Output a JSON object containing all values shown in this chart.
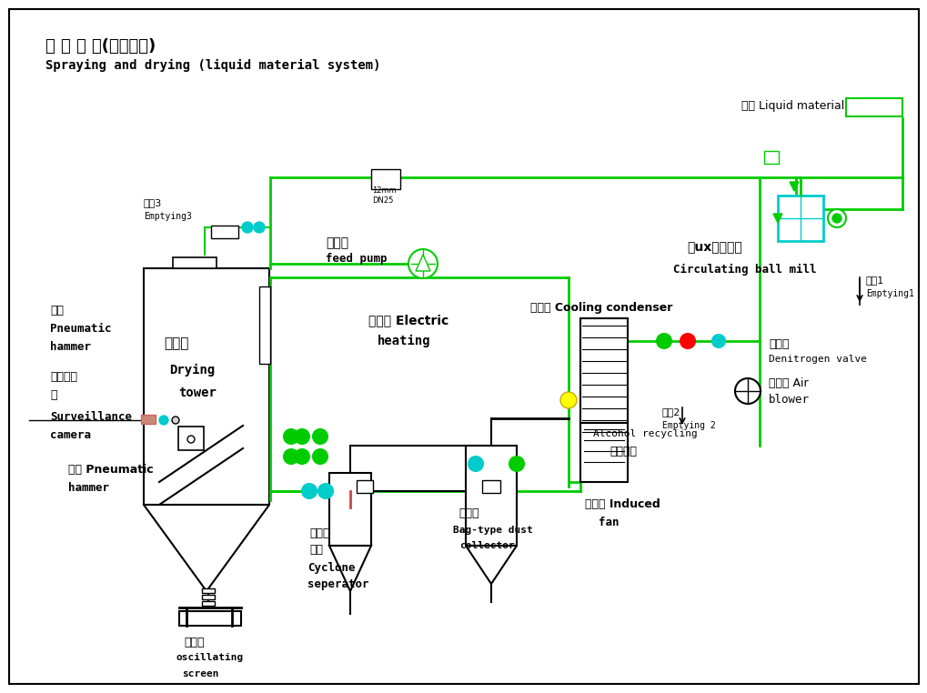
{
  "bg_color": "#ffffff",
  "border_color": "#000000",
  "line_color": "#00cc00",
  "cyan_color": "#00cccc",
  "title_cn": "喷 雾 干 燥(料液系统)",
  "title_en": "Spraying and drying (liquid material system)",
  "liquid_material": "料液 Liquid material",
  "ball_mill_cn": "循ux环球磨机",
  "ball_mill_en": "Circulating ball mill",
  "emptying1_cn": "排空1",
  "emptying1_en": "Emptying1",
  "emptying2_cn": "排空2",
  "emptying2_en": "Emptying 2",
  "emptying3_cn": "排空3",
  "emptying3_en": "Emptying3",
  "feed_pump_cn": "送料泵",
  "feed_pump_en": "feed pump",
  "electric_heat_cn": "电加热 Electric",
  "electric_heat_en": "heating",
  "cooling_cond": "冷凝器 Cooling condenser",
  "denitrogen_cn": "排氮阀",
  "denitrogen_en": "Denitrogen valve",
  "air_blower_cn": "鼓风机 Air",
  "air_blower_en": "blower",
  "drying_tower_cn": "干燥塔",
  "drying_tower_en1": "Drying",
  "drying_tower_en2": "tower",
  "pneumatic1_cn": "气锤",
  "pneumatic1_en1": "Pneumatic",
  "pneumatic1_en2": "hammer",
  "surveillance_cn1": "监控摄像",
  "surveillance_cn2": "头",
  "surveillance_en1": "Surveillance",
  "surveillance_en2": "camera",
  "pneumatic2_cn": "气锤 Pneumatic",
  "pneumatic2_en": "hammer",
  "cyclone_cn1": "旋风分",
  "cyclone_cn2": "离器",
  "cyclone_en1": "Cyclone",
  "cyclone_en2": "seperator",
  "dustcol_cn": "除尘器",
  "dustcol_en1": "Bag-type dust",
  "dustcol_en2": "collector",
  "inducedfan_cn": "引风机 Induced",
  "inducedfan_en": "fan",
  "alcohol_cn": "酒精回收",
  "alcohol_en": "Alcohol recycling",
  "vibscreen_cn": "振动筛",
  "vibscreen_en1": "oscillating",
  "vibscreen_en2": "screen"
}
